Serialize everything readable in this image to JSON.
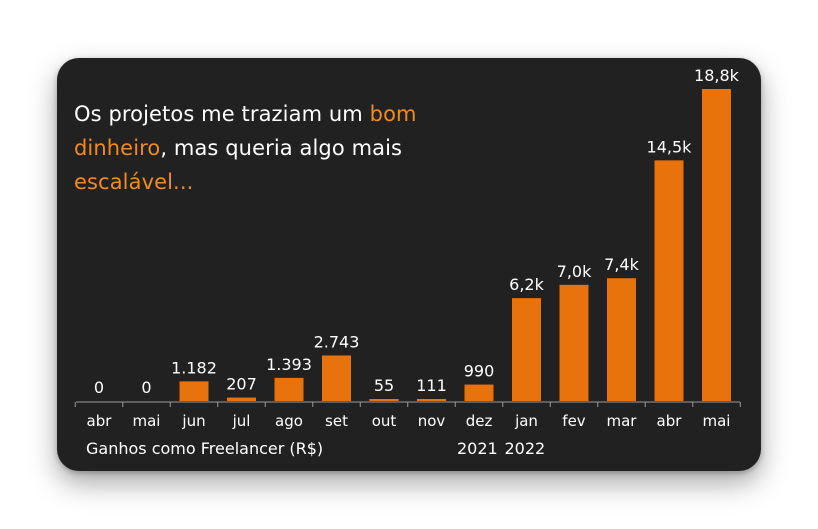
{
  "headline": {
    "part1": "Os projetos me traziam um ",
    "highlight1": "bom dinheiro",
    "part2": ", mas queria algo mais ",
    "highlight2": "escalável..."
  },
  "colors": {
    "background": "#212121",
    "bar": "#e8720c",
    "accent_text": "#f28a1e",
    "text": "#ffffff"
  },
  "chart_data": {
    "type": "bar",
    "title": "",
    "xlabel": "Ganhos como Freelancer (R$)",
    "ylabel": "",
    "ylim": [
      0,
      18800
    ],
    "grid": false,
    "categories": [
      "abr",
      "mai",
      "jun",
      "jul",
      "ago",
      "set",
      "out",
      "nov",
      "dez",
      "jan",
      "fev",
      "mar",
      "abr",
      "mai"
    ],
    "values": [
      0,
      0,
      1182,
      207,
      1393,
      2743,
      55,
      111,
      990,
      6200,
      7000,
      7400,
      14500,
      18800
    ],
    "data_labels": [
      "0",
      "0",
      "1.182",
      "207",
      "1.393",
      "2.743",
      "55",
      "111",
      "990",
      "6,2k",
      "7,0k",
      "7,4k",
      "14,5k",
      "18,8k"
    ],
    "year_labels": [
      {
        "label": "2021",
        "category_index": 8
      },
      {
        "label": "2022",
        "category_index": 9
      }
    ]
  }
}
